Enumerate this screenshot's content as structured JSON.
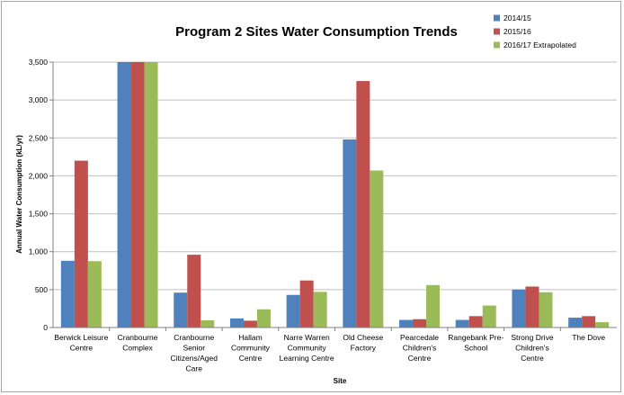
{
  "chart_data": {
    "type": "bar",
    "title": "Program 2 Sites Water Consumption Trends",
    "xlabel": "Site",
    "ylabel": "Annual Water Consumption  (kL/yr)",
    "ylim": [
      0,
      3500
    ],
    "yticks": [
      0,
      500,
      1000,
      1500,
      2000,
      2500,
      3000,
      3500
    ],
    "ytick_labels": [
      "0",
      "500",
      "1,000",
      "1,500",
      "2,000",
      "2,500",
      "3,000",
      "3,500"
    ],
    "grid": true,
    "legend_position": "top-right",
    "categories": [
      [
        "Berwick Leisure",
        "Centre"
      ],
      [
        "Cranbourne",
        "Complex"
      ],
      [
        "Cranbourne",
        "Senior",
        "Citizens/Aged",
        "Care"
      ],
      [
        "Hallam",
        "Community",
        "Centre"
      ],
      [
        "Narre Warren",
        "Community",
        "Learning Centre"
      ],
      [
        "Old Cheese",
        "Factory"
      ],
      [
        "Pearcedale",
        "Children's",
        "Centre"
      ],
      [
        "Rangebank Pre-",
        "School"
      ],
      [
        "Strong Drive",
        "Children's",
        "Centre"
      ],
      [
        "The Dove"
      ]
    ],
    "series": [
      {
        "name": "2014/15",
        "color": "#4f81bd",
        "values": [
          880,
          3500,
          460,
          120,
          430,
          2480,
          100,
          100,
          500,
          130
        ]
      },
      {
        "name": "2015/16",
        "color": "#c0504d",
        "values": [
          2200,
          3500,
          960,
          90,
          620,
          3250,
          110,
          150,
          540,
          150
        ]
      },
      {
        "name": "2016/17 Extrapolated",
        "color": "#9bbb59",
        "values": [
          875,
          3500,
          95,
          240,
          470,
          2070,
          560,
          290,
          465,
          70
        ]
      }
    ]
  }
}
